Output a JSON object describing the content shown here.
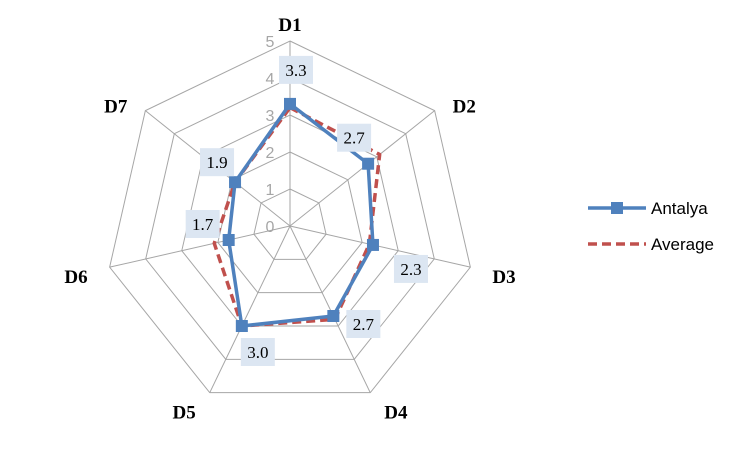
{
  "chart_data": {
    "type": "radar",
    "categories": [
      "D1",
      "D2",
      "D3",
      "D4",
      "D5",
      "D6",
      "D7"
    ],
    "rmin": 0,
    "rmax": 5,
    "ticks": [
      "0",
      "1",
      "2",
      "3",
      "4",
      "5"
    ],
    "series": [
      {
        "name": "Antalya",
        "values": [
          3.3,
          2.7,
          2.3,
          2.7,
          3.0,
          1.7,
          1.9
        ],
        "color": "#4f81bd",
        "style": "solid-square-markers"
      },
      {
        "name": "Average",
        "values": [
          3.2,
          3.1,
          2.2,
          2.8,
          3.0,
          2.1,
          1.9
        ],
        "color": "#c0504d",
        "style": "dashed"
      }
    ],
    "data_labels": [
      "3.3",
      "2.7",
      "2.3",
      "2.7",
      "3.0",
      "1.7",
      "1.9"
    ],
    "legend_position": "right",
    "grid": true,
    "grid_color": "#a6a6a6",
    "data_label_background": "#dce6f2"
  }
}
